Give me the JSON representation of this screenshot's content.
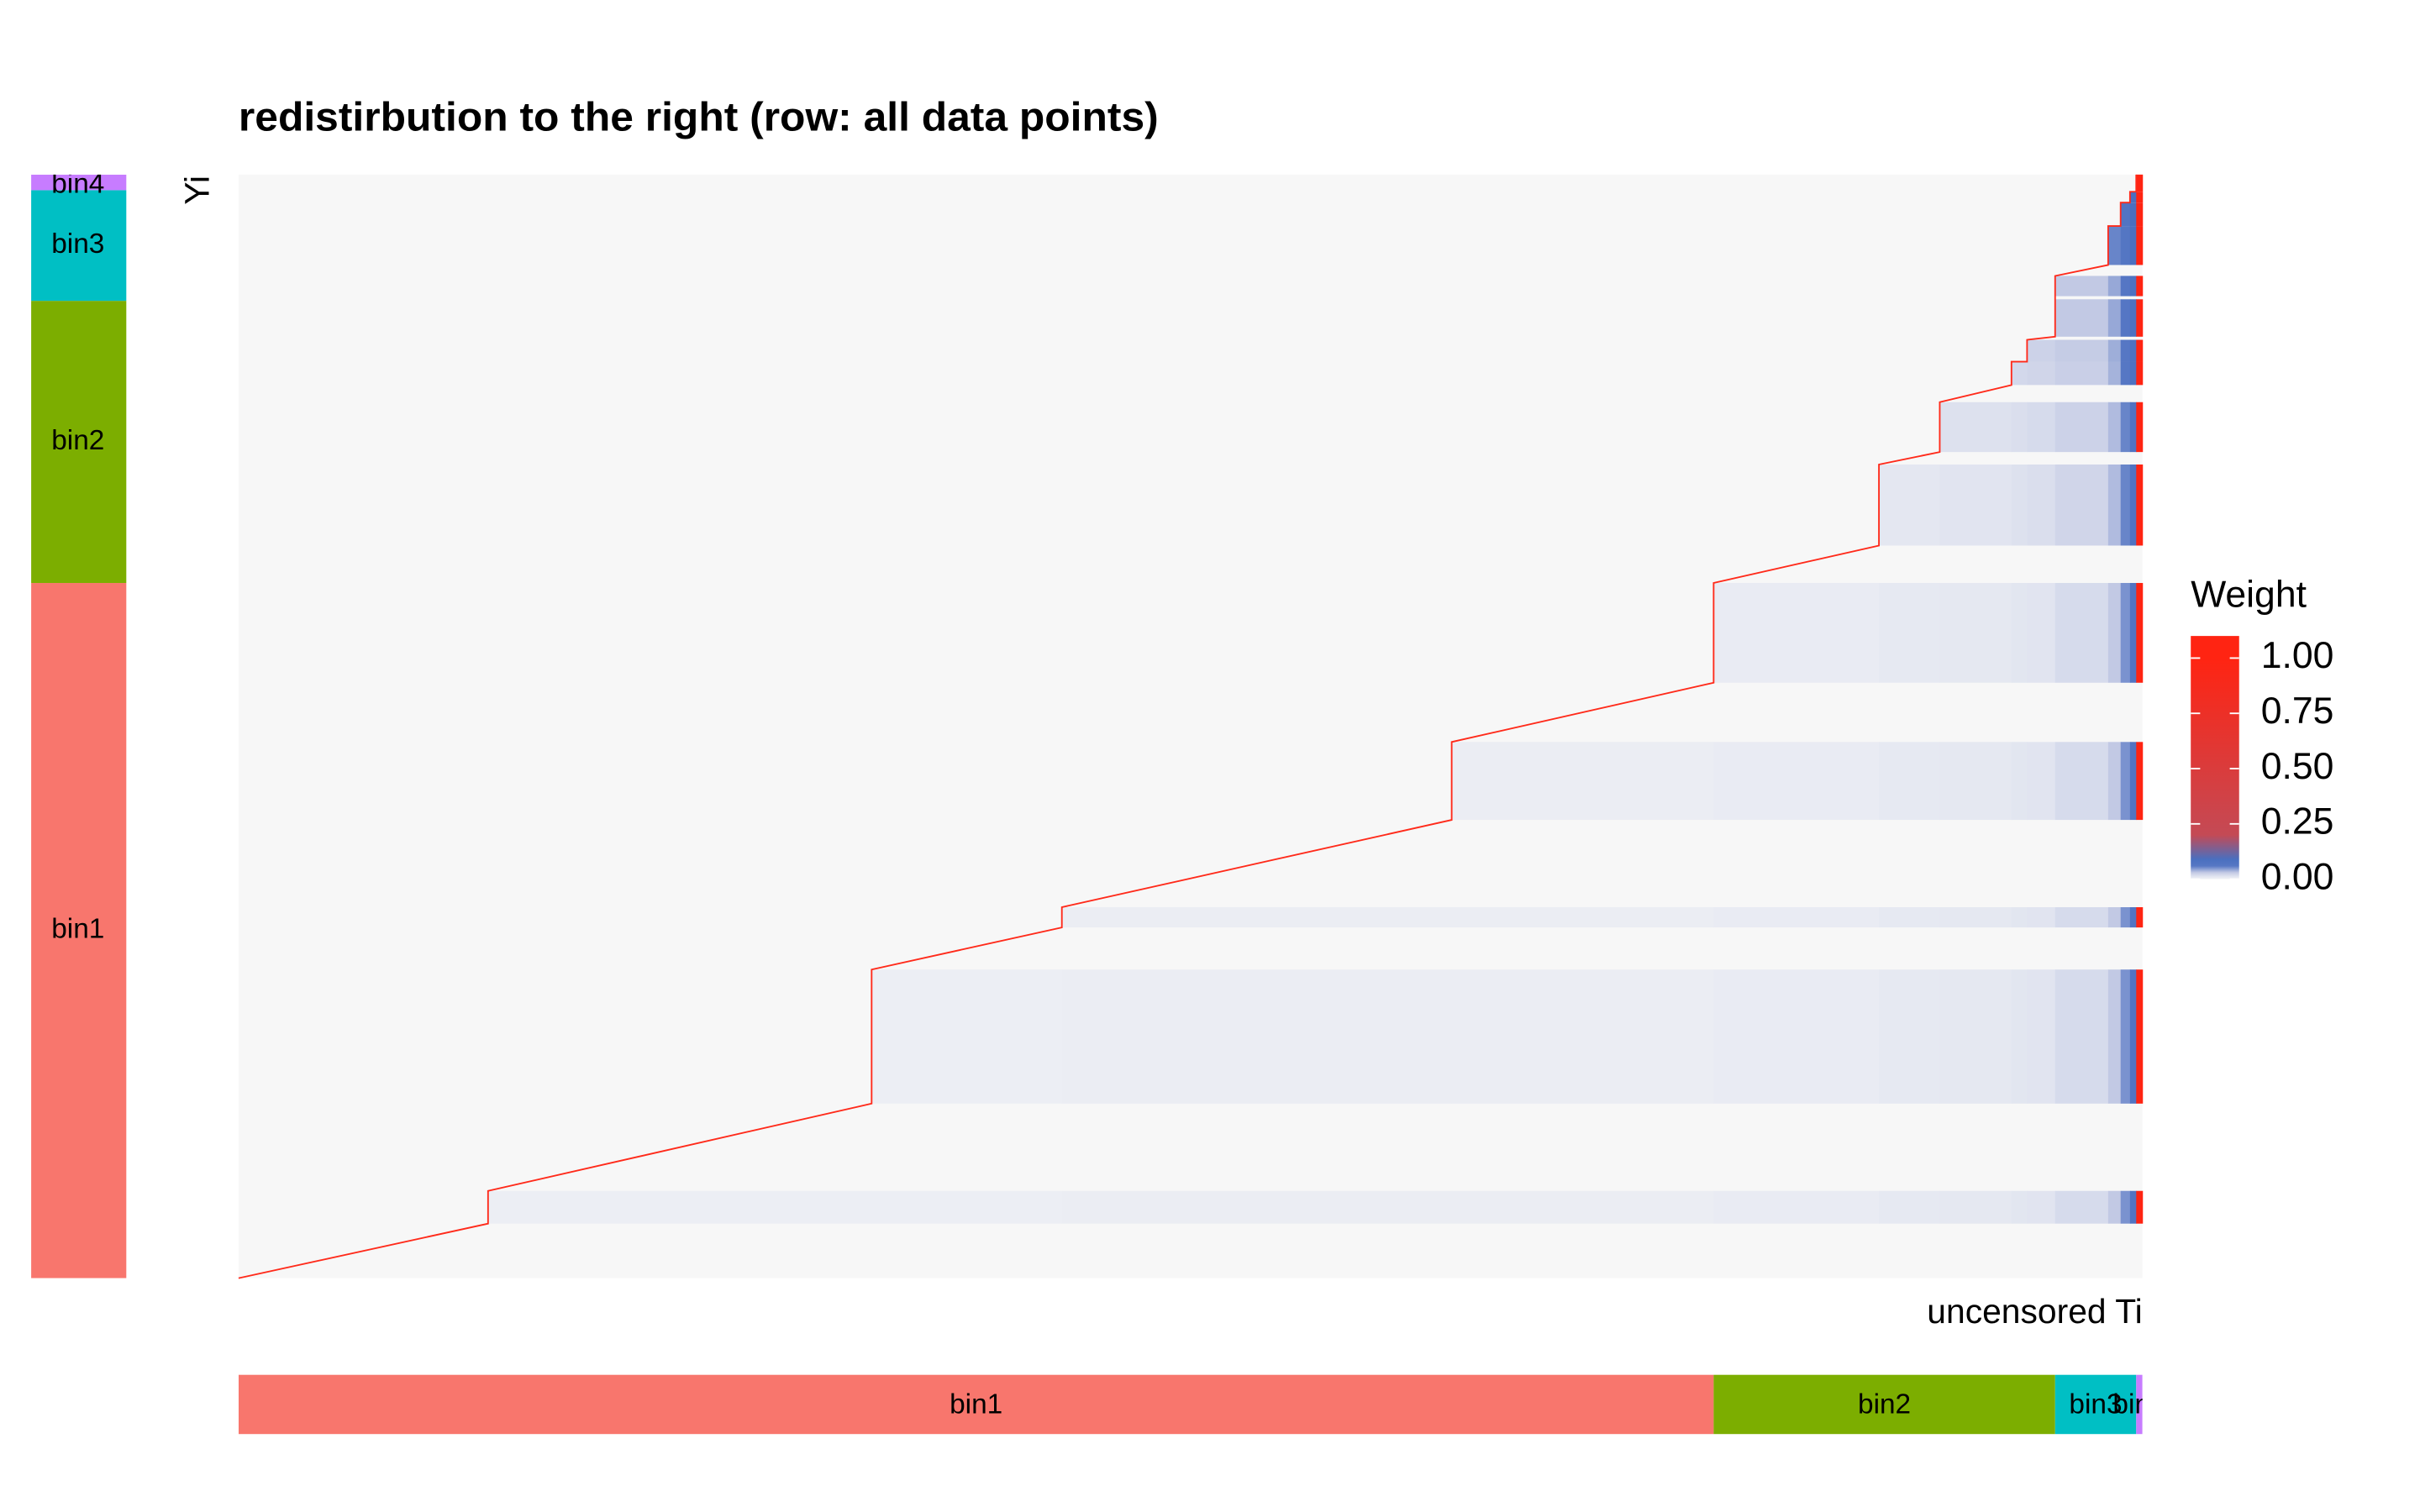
{
  "chart_data": {
    "type": "heatmap",
    "title": "redistirbution to the right (row: all data points)",
    "xlabel": "uncensored Ti",
    "ylabel": "Yi",
    "xlim": [
      0,
      1221
    ],
    "ylim": [
      0,
      708
    ],
    "col_edges": [
      0,
      160,
      406,
      528,
      778,
      946,
      1052,
      1091,
      1137,
      1147,
      1165,
      1199,
      1207,
      1213,
      1217,
      1221
    ],
    "blocks": [
      {
        "rows": [
          35,
          56
        ],
        "start": 1,
        "weights": [
          0.003,
          0.003,
          0.004,
          0.004,
          0.006,
          0.008,
          0.009,
          0.011,
          0.012,
          0.018,
          0.03,
          0.05,
          0.07,
          1.0
        ]
      },
      {
        "rows": [
          112,
          198
        ],
        "start": 2,
        "weights": [
          0.003,
          0.004,
          0.004,
          0.006,
          0.008,
          0.009,
          0.011,
          0.012,
          0.018,
          0.03,
          0.05,
          0.07,
          1.0
        ]
      },
      {
        "rows": [
          225,
          238
        ],
        "start": 3,
        "weights": [
          0.004,
          0.004,
          0.006,
          0.008,
          0.009,
          0.011,
          0.012,
          0.018,
          0.03,
          0.05,
          0.07,
          1.0
        ]
      },
      {
        "rows": [
          294,
          344
        ],
        "start": 4,
        "weights": [
          0.004,
          0.006,
          0.008,
          0.009,
          0.011,
          0.012,
          0.018,
          0.03,
          0.05,
          0.07,
          1.0
        ]
      },
      {
        "rows": [
          382,
          446
        ],
        "start": 5,
        "weights": [
          0.006,
          0.008,
          0.009,
          0.011,
          0.012,
          0.018,
          0.03,
          0.05,
          0.07,
          1.0
        ]
      },
      {
        "rows": [
          470,
          522
        ],
        "start": 6,
        "weights": [
          0.01,
          0.012,
          0.014,
          0.016,
          0.022,
          0.035,
          0.055,
          0.075,
          1.0
        ]
      },
      {
        "rows": [
          530,
          562
        ],
        "start": 7,
        "weights": [
          0.014,
          0.016,
          0.018,
          0.024,
          0.035,
          0.055,
          0.075,
          1.0
        ]
      },
      {
        "rows": [
          573,
          588
        ],
        "start": 8,
        "weights": [
          0.02,
          0.022,
          0.026,
          0.038,
          0.06,
          0.08,
          1.0
        ]
      },
      {
        "rows": [
          588,
          602
        ],
        "start": 9,
        "weights": [
          0.024,
          0.028,
          0.04,
          0.06,
          0.08,
          1.0
        ]
      },
      {
        "rows": [
          604,
          628
        ],
        "start": 10,
        "weights": [
          0.03,
          0.042,
          0.062,
          0.08,
          1.0
        ]
      },
      {
        "rows": [
          630,
          643
        ],
        "start": 10,
        "weights": [
          0.03,
          0.042,
          0.062,
          0.08,
          1.0
        ]
      },
      {
        "rows": [
          650,
          675
        ],
        "start": 11,
        "weights": [
          0.055,
          0.065,
          0.085,
          1.0
        ]
      },
      {
        "rows": [
          675,
          690
        ],
        "start": 12,
        "weights": [
          0.07,
          0.09,
          1.0
        ]
      },
      {
        "rows": [
          690,
          697
        ],
        "start": 13,
        "weights": [
          0.09,
          1.0
        ]
      },
      {
        "rows": [
          697,
          708
        ],
        "start": 14,
        "weights": [
          1.0
        ]
      }
    ],
    "colorscale": [
      [
        0,
        "#f0f1f5"
      ],
      [
        0.01,
        "#e4e7f1"
      ],
      [
        0.03,
        "#c2c9e4"
      ],
      [
        0.06,
        "#5677c4"
      ],
      [
        0.09,
        "#4a6fbf"
      ],
      [
        0.2,
        "#c44a55"
      ],
      [
        1,
        "#ff2412"
      ]
    ],
    "legend_title": "Weight",
    "legend_lim": [
      0,
      1.1
    ],
    "legend_ticks": [
      {
        "value": 0,
        "label": "0.00"
      },
      {
        "value": 0.25,
        "label": "0.25"
      },
      {
        "value": 0.5,
        "label": "0.50"
      },
      {
        "value": 0.75,
        "label": "0.75"
      },
      {
        "value": 1,
        "label": "1.00"
      }
    ],
    "row_annotation": [
      {
        "name": "bin1",
        "color": "#f8766d",
        "range": [
          0,
          446
        ]
      },
      {
        "name": "bin2",
        "color": "#7cae00",
        "range": [
          446,
          627
        ]
      },
      {
        "name": "bin3",
        "color": "#00bfc4",
        "range": [
          627,
          698
        ]
      },
      {
        "name": "bin4",
        "color": "#c77cff",
        "range": [
          698,
          708
        ]
      }
    ],
    "col_annotation": [
      {
        "name": "bin1",
        "color": "#f8766d",
        "range": [
          0,
          946
        ]
      },
      {
        "name": "bin2",
        "color": "#7cae00",
        "range": [
          946,
          1165
        ]
      },
      {
        "name": "bin3",
        "color": "#00bfc4",
        "range": [
          1165,
          1217
        ]
      },
      {
        "name": "bin4",
        "color": "#c77cff",
        "range": [
          1217,
          1221
        ]
      }
    ]
  }
}
